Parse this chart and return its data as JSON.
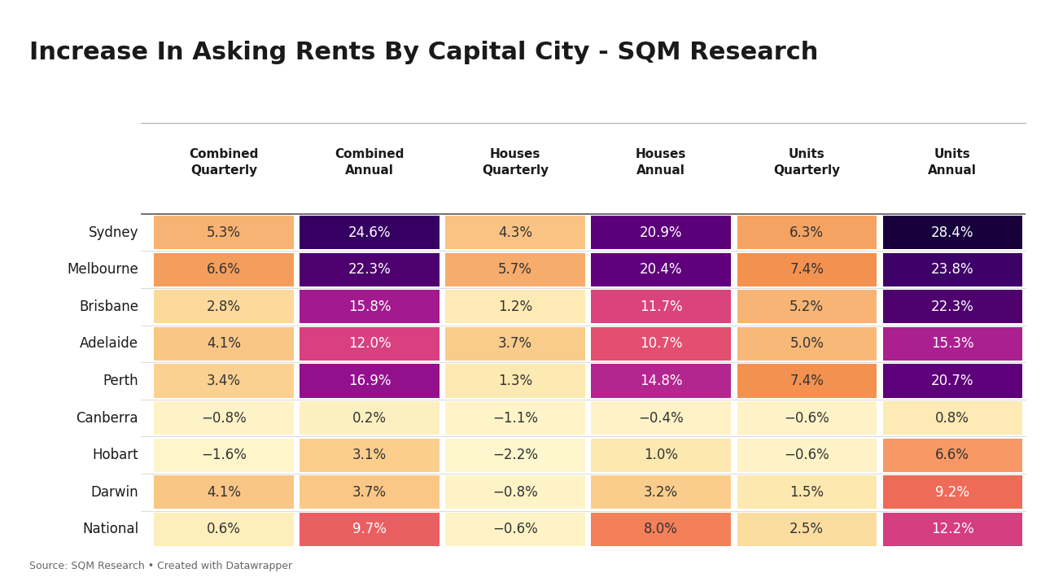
{
  "title": "Increase In Asking Rents By Capital City - SQM Research",
  "source": "Source: SQM Research • Created with Datawrapper",
  "columns": [
    "Combined\nQuarterly",
    "Combined\nAnnual",
    "Houses\nQuarterly",
    "Houses\nAnnual",
    "Units\nQuarterly",
    "Units\nAnnual"
  ],
  "rows": [
    "Sydney",
    "Melbourne",
    "Brisbane",
    "Adelaide",
    "Perth",
    "Canberra",
    "Hobart",
    "Darwin",
    "National"
  ],
  "values": [
    [
      5.3,
      24.6,
      4.3,
      20.9,
      6.3,
      28.4
    ],
    [
      6.6,
      22.3,
      5.7,
      20.4,
      7.4,
      23.8
    ],
    [
      2.8,
      15.8,
      1.2,
      11.7,
      5.2,
      22.3
    ],
    [
      4.1,
      12.0,
      3.7,
      10.7,
      5.0,
      15.3
    ],
    [
      3.4,
      16.9,
      1.3,
      14.8,
      7.4,
      20.7
    ],
    [
      -0.8,
      0.2,
      -1.1,
      -0.4,
      -0.6,
      0.8
    ],
    [
      -1.6,
      3.1,
      -2.2,
      1.0,
      -0.6,
      6.6
    ],
    [
      4.1,
      3.7,
      -0.8,
      3.2,
      1.5,
      9.2
    ],
    [
      0.6,
      9.7,
      -0.6,
      8.0,
      2.5,
      12.2
    ]
  ],
  "labels": [
    [
      "5.3%",
      "24.6%",
      "4.3%",
      "20.9%",
      "6.3%",
      "28.4%"
    ],
    [
      "6.6%",
      "22.3%",
      "5.7%",
      "20.4%",
      "7.4%",
      "23.8%"
    ],
    [
      "2.8%",
      "15.8%",
      "1.2%",
      "11.7%",
      "5.2%",
      "22.3%"
    ],
    [
      "4.1%",
      "12.0%",
      "3.7%",
      "10.7%",
      "5.0%",
      "15.3%"
    ],
    [
      "3.4%",
      "16.9%",
      "1.3%",
      "14.8%",
      "7.4%",
      "20.7%"
    ],
    [
      "−0.8%",
      "0.2%",
      "−1.1%",
      "−0.4%",
      "−0.6%",
      "0.8%"
    ],
    [
      "−1.6%",
      "3.1%",
      "−2.2%",
      "1.0%",
      "−0.6%",
      "6.6%"
    ],
    [
      "4.1%",
      "3.7%",
      "−0.8%",
      "3.2%",
      "1.5%",
      "9.2%"
    ],
    [
      "0.6%",
      "9.7%",
      "−0.6%",
      "8.0%",
      "2.5%",
      "12.2%"
    ]
  ],
  "col_types": [
    "quarterly",
    "annual",
    "quarterly",
    "annual",
    "quarterly",
    "annual"
  ],
  "background_color": "#ffffff",
  "title_fontsize": 22,
  "header_fontsize": 11,
  "cell_fontsize": 12,
  "row_label_fontsize": 12
}
